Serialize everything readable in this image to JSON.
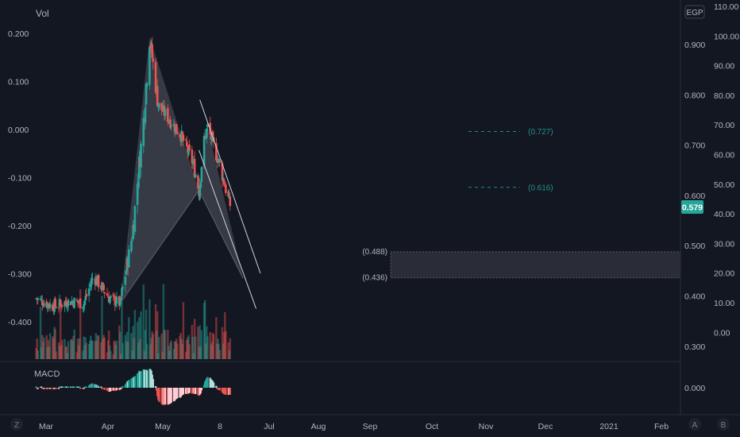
{
  "colors": {
    "background": "#131722",
    "up": "#26a69a",
    "down": "#ef5350",
    "text": "#b2b5be",
    "divider": "#2a2e39",
    "pattern_fill": "#9598a1",
    "price_badge": "#26a69a",
    "macd_up_strong": "#26a69a",
    "macd_up_weak": "#b2dfdb",
    "macd_down_strong": "#ef5350",
    "macd_down_weak": "#ffcdd2"
  },
  "labels": {
    "vol": "Vol",
    "macd": "MACD",
    "currency": "EGP",
    "price_badge": "0.579",
    "macd_axis": "0.000",
    "btn_z": "Z",
    "btn_a": "A",
    "btn_b": "B"
  },
  "chart_data": {
    "type": "candlestick",
    "title": "",
    "x_ticks": [
      "Mar",
      "Apr",
      "May",
      "8",
      "Jul",
      "Aug",
      "Sep",
      "Oct",
      "Nov",
      "Dec",
      "2021",
      "Feb"
    ],
    "left_axis_ticks": [
      "0.200",
      "0.100",
      "0.000",
      "-0.100",
      "-0.200",
      "-0.300",
      "-0.400"
    ],
    "price_axis_ticks": [
      "0.900",
      "0.800",
      "0.700",
      "0.600",
      "0.500",
      "0.400",
      "0.300"
    ],
    "volume_axis_ticks": [
      "110.00",
      "100.00",
      "90.00",
      "80.00",
      "70.00",
      "60.00",
      "50.00",
      "40.00",
      "30.00",
      "20.00",
      "10.00",
      "0.00"
    ],
    "last_price": 0.579,
    "price_range": [
      0.3,
      0.95
    ],
    "key_price_path": [
      {
        "date": "2020-02-25",
        "close": 0.395
      },
      {
        "date": "2020-03-15",
        "close": 0.38
      },
      {
        "date": "2020-04-05",
        "close": 0.39
      },
      {
        "date": "2020-04-20",
        "close": 0.385
      },
      {
        "date": "2020-05-01",
        "close": 0.44
      },
      {
        "date": "2020-05-20",
        "close": 0.395
      },
      {
        "date": "2020-06-01",
        "close": 0.385
      },
      {
        "date": "2020-06-15",
        "close": 0.52
      },
      {
        "date": "2020-06-28",
        "close": 0.75
      },
      {
        "date": "2020-07-05",
        "close": 0.915
      },
      {
        "date": "2020-07-15",
        "close": 0.78
      },
      {
        "date": "2020-08-10",
        "close": 0.72
      },
      {
        "date": "2020-08-25",
        "close": 0.66
      },
      {
        "date": "2020-08-31",
        "close": 0.61
      },
      {
        "date": "2020-09-05",
        "close": 0.7
      },
      {
        "date": "2020-09-10",
        "close": 0.735
      },
      {
        "date": "2020-09-25",
        "close": 0.655
      },
      {
        "date": "2020-10-06",
        "close": 0.579
      }
    ],
    "pattern_points": [
      {
        "date": "2020-06-01",
        "price": 0.385
      },
      {
        "date": "2020-07-05",
        "price": 0.915
      },
      {
        "date": "2020-08-31",
        "price": 0.61
      },
      {
        "date": "2020-09-10",
        "price": 0.735
      },
      {
        "date": "2020-10-21",
        "price": 0.435
      }
    ],
    "fib_levels": [
      {
        "label": "(0.727)",
        "value": 0.727
      },
      {
        "label": "(0.616)",
        "value": 0.616
      }
    ],
    "target_zone": {
      "labels": [
        "(0.488)",
        "(0.436)"
      ],
      "high": 0.488,
      "low": 0.436
    },
    "channel_lines": [
      {
        "from": {
          "date": "2020-09-01",
          "price": 0.79
        },
        "to": {
          "date": "2020-11-10",
          "price": 0.445
        }
      },
      {
        "from": {
          "date": "2020-08-31",
          "price": 0.69
        },
        "to": {
          "date": "2020-11-05",
          "price": 0.375
        }
      }
    ],
    "indicators": [
      "Vol",
      "MACD"
    ],
    "grid": false,
    "scale": "linear"
  }
}
